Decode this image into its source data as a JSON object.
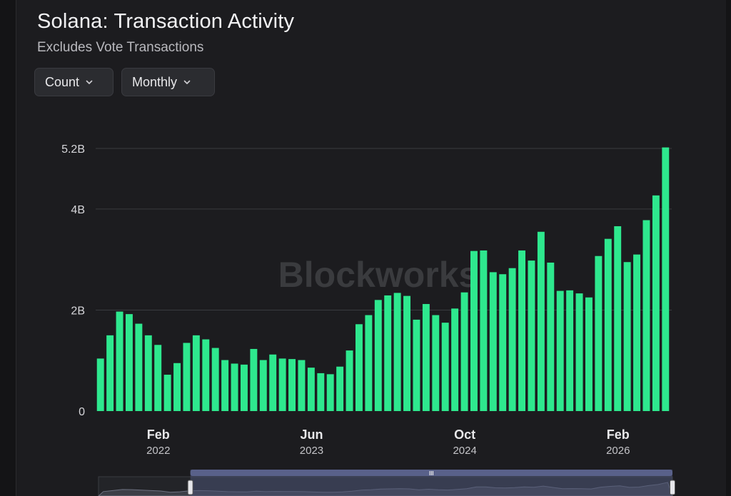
{
  "header": {
    "title": "Solana: Transaction Activity",
    "subtitle": "Excludes Vote Transactions"
  },
  "controls": {
    "metric_label": "Count",
    "period_label": "Monthly"
  },
  "watermark": "Blockworks",
  "colors": {
    "bar": "#2ee88e",
    "grid": "#3a3b3f",
    "background": "#1c1c1f",
    "navigator_window": "#4a5273"
  },
  "chart_data": {
    "type": "bar",
    "title": "Solana: Transaction Activity",
    "subtitle": "Excludes Vote Transactions",
    "ylim": [
      0,
      5.2
    ],
    "y_ticks": [
      {
        "value": 0,
        "label": "0"
      },
      {
        "value": 2,
        "label": "2B"
      },
      {
        "value": 4,
        "label": "4B"
      },
      {
        "value": 5.2,
        "label": "5.2B"
      }
    ],
    "x_ticks": [
      {
        "index": 5,
        "month": "Feb",
        "year": "2022"
      },
      {
        "index": 21,
        "month": "Jun",
        "year": "2023"
      },
      {
        "index": 37,
        "month": "Oct",
        "year": "2024"
      },
      {
        "index": 53,
        "month": "Feb",
        "year": "2026"
      }
    ],
    "grid": true,
    "legend": "none",
    "values": [
      1.04,
      1.5,
      1.97,
      1.92,
      1.73,
      1.5,
      1.31,
      0.72,
      0.95,
      1.35,
      1.5,
      1.42,
      1.25,
      1.01,
      0.94,
      0.92,
      1.23,
      1.01,
      1.12,
      1.04,
      1.03,
      1.01,
      0.86,
      0.75,
      0.73,
      0.88,
      1.2,
      1.72,
      1.9,
      2.2,
      2.29,
      2.34,
      2.28,
      1.81,
      2.12,
      1.9,
      1.75,
      2.03,
      2.35,
      3.17,
      3.18,
      2.75,
      2.71,
      2.83,
      3.18,
      2.98,
      3.55,
      2.94,
      2.38,
      2.39,
      2.33,
      2.25,
      3.07,
      3.41,
      3.66,
      2.95,
      3.1,
      3.78,
      4.27,
      5.22
    ]
  },
  "navigator": {
    "handle_label": "III",
    "window_start": 0.16,
    "window_end": 1.0
  }
}
